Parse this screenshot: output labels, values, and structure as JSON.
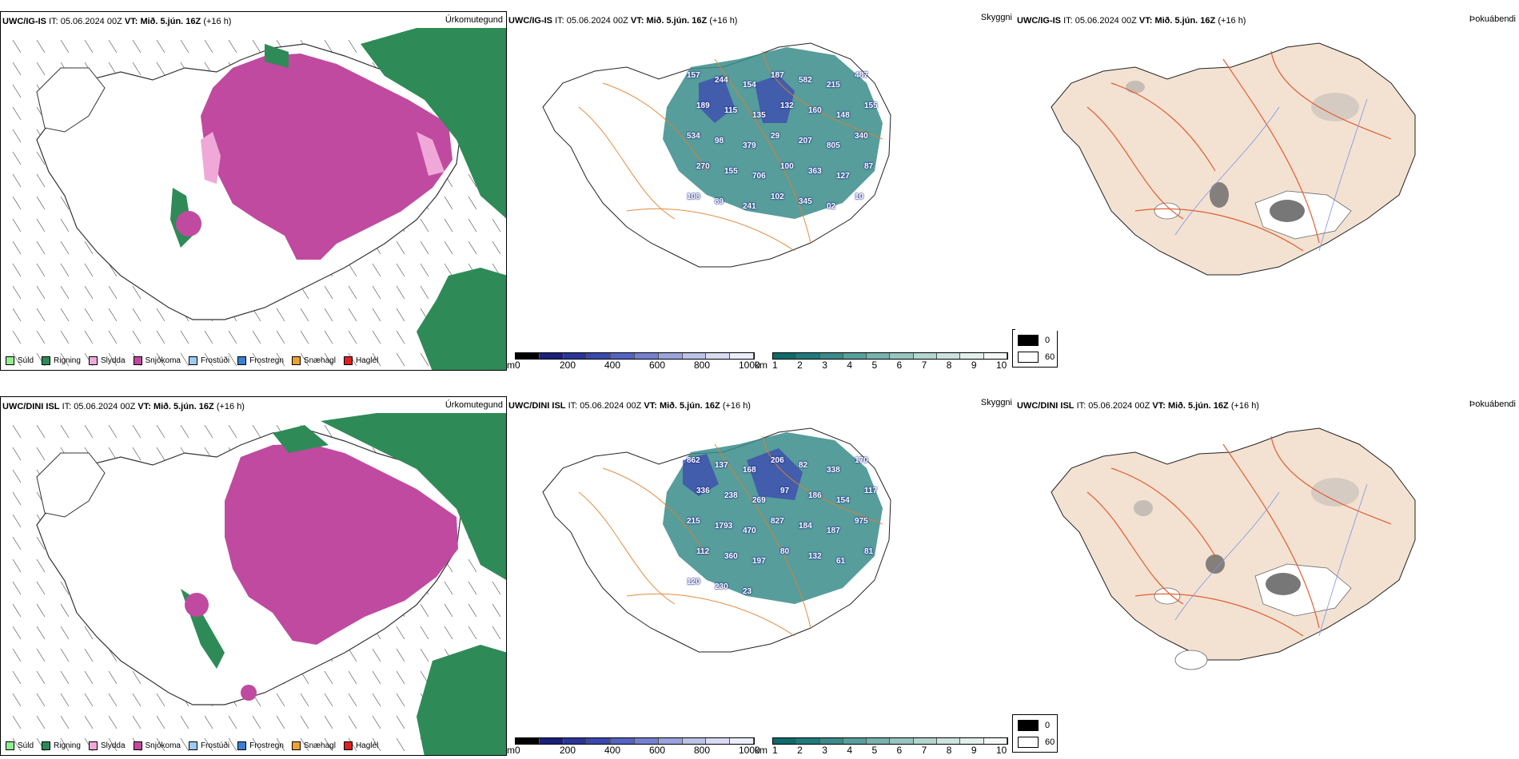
{
  "rows": [
    {
      "model": "UWC/IG-IS",
      "it_label": "IT:",
      "it_value": "05.06.2024 00Z",
      "vt_label": "VT:",
      "vt_value": "Mið. 5.jún. 16Z",
      "lead": "(+16 h)",
      "elev_labels": [
        "157",
        "244",
        "154",
        "187",
        "582",
        "215",
        "487",
        "189",
        "115",
        "135",
        "132",
        "160",
        "148",
        "155",
        "534",
        "98",
        "379",
        "29",
        "207",
        "805",
        "340",
        "270",
        "155",
        "706",
        "100",
        "363",
        "127",
        "87",
        "108",
        "89",
        "241",
        "102",
        "345",
        "02",
        "10"
      ]
    },
    {
      "model": "UWC/DINI ISL",
      "it_label": "IT:",
      "it_value": "05.06.2024 00Z",
      "vt_label": "VT:",
      "vt_value": "Mið. 5.jún. 16Z",
      "lead": "(+16 h)",
      "elev_labels": [
        "862",
        "137",
        "168",
        "206",
        "82",
        "338",
        "170",
        "336",
        "238",
        "269",
        "97",
        "186",
        "154",
        "117",
        "215",
        "1793",
        "470",
        "827",
        "184",
        "187",
        "975",
        "112",
        "360",
        "197",
        "80",
        "132",
        "61",
        "81",
        "120",
        "230",
        "23"
      ]
    }
  ],
  "panel_titles": {
    "precip": "Úrkomutegund",
    "visibility": "Skyggni",
    "fog": "Þokuábendi"
  },
  "precip_legend": [
    {
      "label": "Súld",
      "color": "#90ee90"
    },
    {
      "label": "Rigning",
      "color": "#2e8b57"
    },
    {
      "label": "Slydda",
      "color": "#f0a8d8"
    },
    {
      "label": "Snjókoma",
      "color": "#c04aa0"
    },
    {
      "label": "Frostúði",
      "color": "#9ecbf0"
    },
    {
      "label": "Frostregn",
      "color": "#3c7fd0"
    },
    {
      "label": "Snæhagl",
      "color": "#f0a030"
    },
    {
      "label": "Haglél",
      "color": "#e02020"
    }
  ],
  "elev_bar": {
    "unit": "m",
    "ticks": [
      "0",
      "200",
      "400",
      "600",
      "800",
      "1000"
    ],
    "colors": [
      "#000000",
      "#1a1f7a",
      "#2a3599",
      "#3b48b0",
      "#5563c4",
      "#7480d0",
      "#9aa3dc",
      "#bdc2e8",
      "#d8dbf2",
      "#eceefa"
    ]
  },
  "vis_bar": {
    "unit": "km",
    "ticks": [
      "1",
      "2",
      "3",
      "4",
      "5",
      "6",
      "7",
      "8",
      "9",
      "10"
    ],
    "colors": [
      "#0f6b6b",
      "#1f7b7b",
      "#3a8c8a",
      "#58a09c",
      "#78b3ae",
      "#97c5bf",
      "#b3d6cf",
      "#cde4de",
      "#e2efea",
      "#f4f9f7"
    ]
  },
  "fog_cover": {
    "values": [
      "0",
      "60"
    ],
    "colors": [
      "#000000",
      "#ffffff"
    ]
  }
}
